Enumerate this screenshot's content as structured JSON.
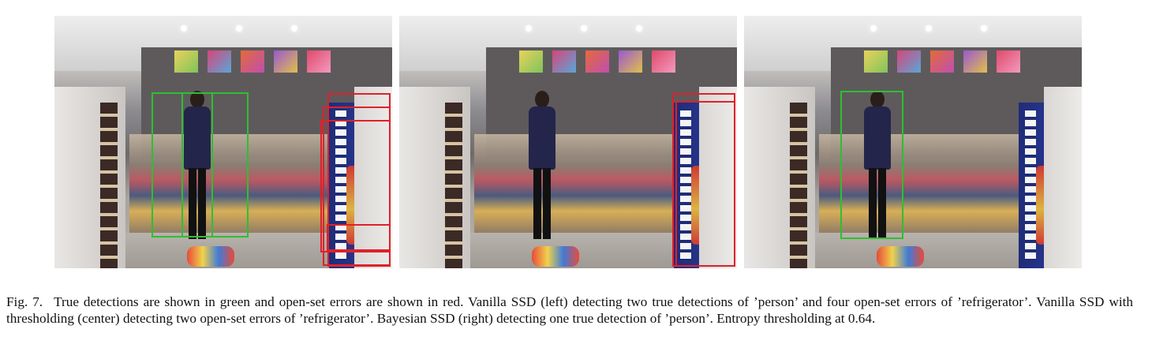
{
  "panels": [
    {
      "id": "left",
      "green_boxes": 2,
      "red_boxes": 4
    },
    {
      "id": "center",
      "green_boxes": 0,
      "red_boxes": 2
    },
    {
      "id": "right",
      "green_boxes": 1,
      "red_boxes": 0
    }
  ],
  "colors": {
    "true_detection": "#2fbf2f",
    "open_set_error": "#e0202a"
  },
  "caption": {
    "label": "Fig. 7.",
    "text": "True detections are shown in green and open-set errors are shown in red. Vanilla SSD (left) detecting two true detections of ’person’ and four open-set errors of ’refrigerator’. Vanilla SSD with thresholding (center) detecting two open-set errors of ’refrigerator’. Bayesian SSD (right) detecting one true detection of ’person’. Entropy thresholding at 0.64."
  }
}
